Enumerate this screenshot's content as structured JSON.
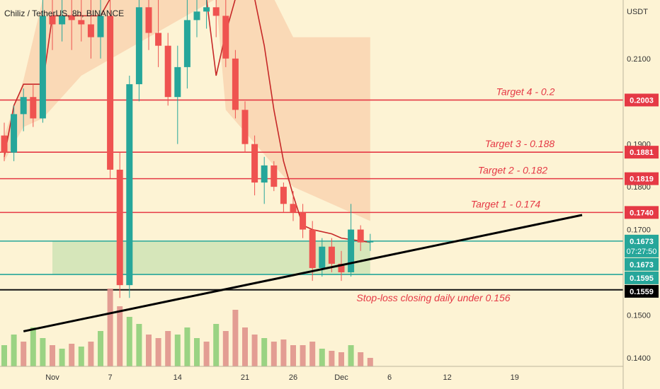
{
  "header": {
    "symbol_line": "Chiliz / TetherUS, 8h, BINANCE",
    "currency": "USDT"
  },
  "colors": {
    "background": "#fdf3d4",
    "up": "#26a69a",
    "down": "#ef5350",
    "target_line": "#e53945",
    "zone_line": "#26a69a",
    "zone_fill": "#cfe3b5",
    "stop_line": "#111111",
    "cloud": "#f9d3b0",
    "baseline": "#c62828"
  },
  "chart_data": {
    "type": "candlestick",
    "title": "Chiliz / TetherUS, 8h, BINANCE",
    "ylabel": "USDT",
    "ylim": [
      0.1327,
      0.2237
    ],
    "y_ticks": [
      0.21,
      0.19,
      0.18,
      0.17,
      0.15,
      0.14
    ],
    "y_tick_labels": [
      "0.2100",
      "0.1900",
      "0.1800",
      "0.1700",
      "0.1500",
      "0.1400"
    ],
    "x_tick_labels": [
      "Nov",
      "7",
      "14",
      "21",
      "26",
      "Dec",
      "6",
      "12",
      "19"
    ],
    "price_labels": [
      {
        "text": "0.2003",
        "value": 0.2003,
        "style": "target"
      },
      {
        "text": "0.1881",
        "value": 0.1881,
        "style": "target"
      },
      {
        "text": "0.1819",
        "value": 0.1819,
        "style": "target"
      },
      {
        "text": "0.1740",
        "value": 0.174,
        "style": "target"
      },
      {
        "text": "0.1673",
        "value": 0.1673,
        "style": "zone",
        "extra": "07:27:50"
      },
      {
        "text": "0.1673",
        "value": 0.1673,
        "style": "zone"
      },
      {
        "text": "0.1595",
        "value": 0.1595,
        "style": "zone"
      },
      {
        "text": "0.1559",
        "value": 0.1559,
        "style": "stop"
      }
    ],
    "annotations": [
      {
        "text": "Target 4 - 0.2",
        "value": 0.2003
      },
      {
        "text": "Target 3 - 0.188",
        "value": 0.1881
      },
      {
        "text": "Target 2 - 0.182",
        "value": 0.1819
      },
      {
        "text": "Target 1 - 0.174",
        "value": 0.174
      },
      {
        "text": "Stop-loss closing daily under 0.156",
        "value": 0.1559
      }
    ],
    "horizontal_lines": [
      {
        "value": 0.2003,
        "kind": "target"
      },
      {
        "value": 0.1881,
        "kind": "target"
      },
      {
        "value": 0.1819,
        "kind": "target"
      },
      {
        "value": 0.174,
        "kind": "target"
      },
      {
        "value": 0.1673,
        "kind": "zone"
      },
      {
        "value": 0.1595,
        "kind": "zone"
      },
      {
        "value": 0.1559,
        "kind": "stop"
      }
    ],
    "zone": {
      "from": 0.1595,
      "to": 0.1673
    },
    "trendline": {
      "from": {
        "date": "Oct 29",
        "price": 0.1462
      },
      "to": {
        "date": "Dec 26",
        "price": 0.1734
      }
    },
    "candles": [
      {
        "d": "Oct 27",
        "o": 0.192,
        "h": 0.195,
        "l": 0.186,
        "c": 0.188
      },
      {
        "d": "Oct 28",
        "o": 0.188,
        "h": 0.199,
        "l": 0.186,
        "c": 0.197
      },
      {
        "d": "Oct 29",
        "o": 0.197,
        "h": 0.203,
        "l": 0.193,
        "c": 0.201
      },
      {
        "d": "Oct 30",
        "o": 0.201,
        "h": 0.204,
        "l": 0.194,
        "c": 0.196
      },
      {
        "d": "Oct 31",
        "o": 0.196,
        "h": 0.224,
        "l": 0.195,
        "c": 0.22
      },
      {
        "d": "Nov 1",
        "o": 0.22,
        "h": 0.224,
        "l": 0.212,
        "c": 0.218
      },
      {
        "d": "Nov 2",
        "o": 0.218,
        "h": 0.224,
        "l": 0.214,
        "c": 0.22
      },
      {
        "d": "Nov 3",
        "o": 0.22,
        "h": 0.224,
        "l": 0.212,
        "c": 0.219
      },
      {
        "d": "Nov 4",
        "o": 0.219,
        "h": 0.224,
        "l": 0.214,
        "c": 0.218
      },
      {
        "d": "Nov 5",
        "o": 0.218,
        "h": 0.224,
        "l": 0.21,
        "c": 0.215
      },
      {
        "d": "Nov 6",
        "o": 0.215,
        "h": 0.224,
        "l": 0.21,
        "c": 0.22
      },
      {
        "d": "Nov 7",
        "o": 0.22,
        "h": 0.224,
        "l": 0.182,
        "c": 0.184
      },
      {
        "d": "Nov 8",
        "o": 0.184,
        "h": 0.188,
        "l": 0.154,
        "c": 0.157
      },
      {
        "d": "Nov 9",
        "o": 0.157,
        "h": 0.206,
        "l": 0.154,
        "c": 0.204
      },
      {
        "d": "Nov 10",
        "o": 0.204,
        "h": 0.224,
        "l": 0.2,
        "c": 0.222
      },
      {
        "d": "Nov 11",
        "o": 0.222,
        "h": 0.224,
        "l": 0.212,
        "c": 0.216
      },
      {
        "d": "Nov 12",
        "o": 0.216,
        "h": 0.224,
        "l": 0.208,
        "c": 0.213
      },
      {
        "d": "Nov 13",
        "o": 0.213,
        "h": 0.216,
        "l": 0.199,
        "c": 0.201
      },
      {
        "d": "Nov 14",
        "o": 0.201,
        "h": 0.213,
        "l": 0.19,
        "c": 0.208
      },
      {
        "d": "Nov 15",
        "o": 0.208,
        "h": 0.224,
        "l": 0.203,
        "c": 0.219
      },
      {
        "d": "Nov 16",
        "o": 0.219,
        "h": 0.224,
        "l": 0.215,
        "c": 0.221
      },
      {
        "d": "Nov 17",
        "o": 0.221,
        "h": 0.224,
        "l": 0.217,
        "c": 0.222
      },
      {
        "d": "Nov 18",
        "o": 0.222,
        "h": 0.224,
        "l": 0.215,
        "c": 0.22
      },
      {
        "d": "Nov 19",
        "o": 0.22,
        "h": 0.224,
        "l": 0.208,
        "c": 0.21
      },
      {
        "d": "Nov 20",
        "o": 0.21,
        "h": 0.212,
        "l": 0.196,
        "c": 0.198
      },
      {
        "d": "Nov 21",
        "o": 0.198,
        "h": 0.2,
        "l": 0.188,
        "c": 0.19
      },
      {
        "d": "Nov 22",
        "o": 0.19,
        "h": 0.192,
        "l": 0.178,
        "c": 0.181
      },
      {
        "d": "Nov 23",
        "o": 0.181,
        "h": 0.187,
        "l": 0.176,
        "c": 0.185
      },
      {
        "d": "Nov 24",
        "o": 0.185,
        "h": 0.186,
        "l": 0.179,
        "c": 0.18
      },
      {
        "d": "Nov 25",
        "o": 0.18,
        "h": 0.181,
        "l": 0.174,
        "c": 0.176
      },
      {
        "d": "Nov 26",
        "o": 0.176,
        "h": 0.179,
        "l": 0.172,
        "c": 0.174
      },
      {
        "d": "Nov 27",
        "o": 0.174,
        "h": 0.176,
        "l": 0.168,
        "c": 0.17
      },
      {
        "d": "Nov 28",
        "o": 0.17,
        "h": 0.172,
        "l": 0.158,
        "c": 0.161
      },
      {
        "d": "Nov 29",
        "o": 0.161,
        "h": 0.168,
        "l": 0.159,
        "c": 0.166
      },
      {
        "d": "Nov 30",
        "o": 0.166,
        "h": 0.168,
        "l": 0.16,
        "c": 0.162
      },
      {
        "d": "Dec 1",
        "o": 0.162,
        "h": 0.165,
        "l": 0.158,
        "c": 0.16
      },
      {
        "d": "Dec 2",
        "o": 0.16,
        "h": 0.176,
        "l": 0.159,
        "c": 0.17
      },
      {
        "d": "Dec 3",
        "o": 0.17,
        "h": 0.171,
        "l": 0.165,
        "c": 0.167
      },
      {
        "d": "Dec 4",
        "o": 0.167,
        "h": 0.169,
        "l": 0.165,
        "c": 0.1673
      }
    ],
    "baseline_series": [
      {
        "d": "Oct 27",
        "v": 0.187
      },
      {
        "d": "Oct 28",
        "v": 0.199
      },
      {
        "d": "Oct 29",
        "v": 0.204
      },
      {
        "d": "Oct 31",
        "v": 0.204
      },
      {
        "d": "Nov 1",
        "v": 0.22
      },
      {
        "d": "Nov 6",
        "v": 0.22
      },
      {
        "d": "Nov 7",
        "v": 0.224
      },
      {
        "d": "Nov 17",
        "v": 0.224
      },
      {
        "d": "Nov 18",
        "v": 0.206
      },
      {
        "d": "Nov 19",
        "v": 0.216
      },
      {
        "d": "Nov 20",
        "v": 0.224
      },
      {
        "d": "Nov 22",
        "v": 0.224
      },
      {
        "d": "Nov 23",
        "v": 0.213
      },
      {
        "d": "Nov 24",
        "v": 0.198
      },
      {
        "d": "Nov 25",
        "v": 0.186
      },
      {
        "d": "Nov 26",
        "v": 0.178
      },
      {
        "d": "Nov 27",
        "v": 0.171
      },
      {
        "d": "Nov 28",
        "v": 0.17
      },
      {
        "d": "Nov 30",
        "v": 0.169
      },
      {
        "d": "Dec 1",
        "v": 0.168
      },
      {
        "d": "Dec 4",
        "v": 0.167
      }
    ],
    "cloud_series": [
      {
        "d": "Oct 27",
        "top": 0.192,
        "bottom": 0.186
      },
      {
        "d": "Oct 29",
        "top": 0.205,
        "bottom": 0.194
      },
      {
        "d": "Oct 31",
        "top": 0.224,
        "bottom": 0.196
      },
      {
        "d": "Nov 4",
        "top": 0.224,
        "bottom": 0.206
      },
      {
        "d": "Nov 18",
        "top": 0.224,
        "bottom": 0.224
      },
      {
        "d": "Nov 19",
        "top": 0.224,
        "bottom": 0.198
      },
      {
        "d": "Nov 24",
        "top": 0.224,
        "bottom": 0.185
      },
      {
        "d": "Nov 26",
        "top": 0.215,
        "bottom": 0.18
      },
      {
        "d": "Dec 4",
        "top": 0.215,
        "bottom": 0.172
      }
    ],
    "volume": [
      {
        "d": "Oct 27",
        "v": 30,
        "up": true
      },
      {
        "d": "Oct 28",
        "v": 45,
        "up": true
      },
      {
        "d": "Oct 29",
        "v": 35,
        "up": false
      },
      {
        "d": "Oct 30",
        "v": 55,
        "up": true
      },
      {
        "d": "Oct 31",
        "v": 40,
        "up": true
      },
      {
        "d": "Nov 1",
        "v": 30,
        "up": false
      },
      {
        "d": "Nov 2",
        "v": 25,
        "up": true
      },
      {
        "d": "Nov 3",
        "v": 32,
        "up": false
      },
      {
        "d": "Nov 4",
        "v": 28,
        "up": true
      },
      {
        "d": "Nov 5",
        "v": 35,
        "up": false
      },
      {
        "d": "Nov 6",
        "v": 50,
        "up": true
      },
      {
        "d": "Nov 7",
        "v": 110,
        "up": false
      },
      {
        "d": "Nov 8",
        "v": 85,
        "up": false
      },
      {
        "d": "Nov 9",
        "v": 70,
        "up": true
      },
      {
        "d": "Nov 10",
        "v": 60,
        "up": true
      },
      {
        "d": "Nov 11",
        "v": 45,
        "up": false
      },
      {
        "d": "Nov 12",
        "v": 40,
        "up": false
      },
      {
        "d": "Nov 13",
        "v": 50,
        "up": false
      },
      {
        "d": "Nov 14",
        "v": 45,
        "up": true
      },
      {
        "d": "Nov 15",
        "v": 55,
        "up": true
      },
      {
        "d": "Nov 16",
        "v": 40,
        "up": true
      },
      {
        "d": "Nov 17",
        "v": 35,
        "up": false
      },
      {
        "d": "Nov 18",
        "v": 60,
        "up": true
      },
      {
        "d": "Nov 19",
        "v": 50,
        "up": false
      },
      {
        "d": "Nov 20",
        "v": 80,
        "up": false
      },
      {
        "d": "Nov 21",
        "v": 55,
        "up": false
      },
      {
        "d": "Nov 22",
        "v": 45,
        "up": false
      },
      {
        "d": "Nov 23",
        "v": 40,
        "up": true
      },
      {
        "d": "Nov 24",
        "v": 35,
        "up": false
      },
      {
        "d": "Nov 25",
        "v": 38,
        "up": false
      },
      {
        "d": "Nov 26",
        "v": 30,
        "up": false
      },
      {
        "d": "Nov 27",
        "v": 30,
        "up": false
      },
      {
        "d": "Nov 28",
        "v": 35,
        "up": false
      },
      {
        "d": "Nov 29",
        "v": 25,
        "up": true
      },
      {
        "d": "Nov 30",
        "v": 22,
        "up": false
      },
      {
        "d": "Dec 1",
        "v": 20,
        "up": false
      },
      {
        "d": "Dec 2",
        "v": 30,
        "up": true
      },
      {
        "d": "Dec 3",
        "v": 20,
        "up": false
      },
      {
        "d": "Dec 4",
        "v": 12,
        "up": false
      }
    ],
    "grid": false
  }
}
